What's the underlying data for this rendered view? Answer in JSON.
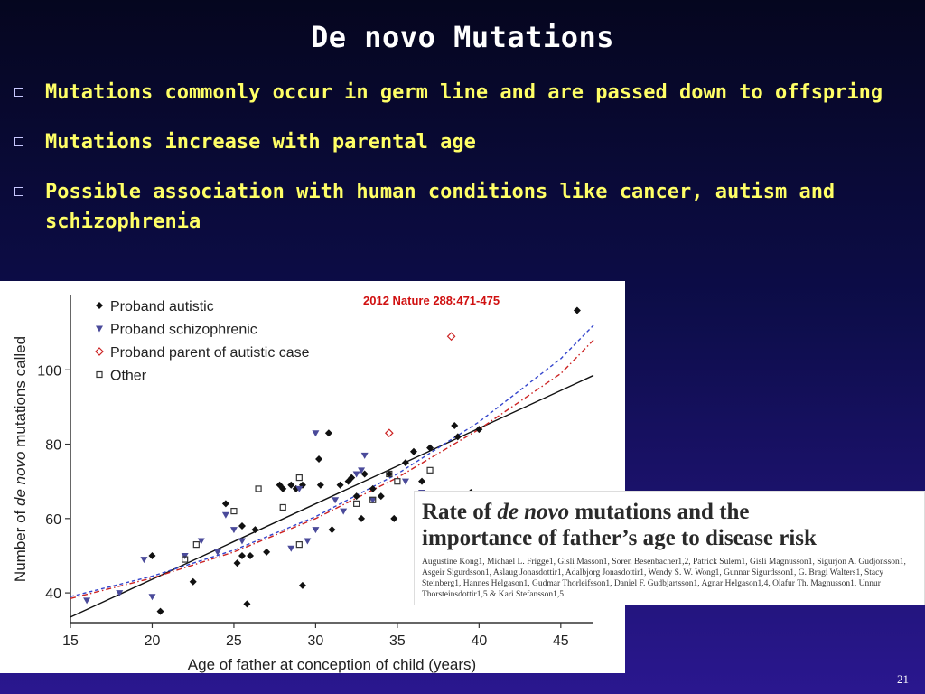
{
  "slide": {
    "title": "De novo Mutations",
    "bullets": [
      "Mutations commonly occur in germ line and are passed down to offspring",
      "Mutations increase with parental age",
      "Possible association with human conditions like cancer, autism and schizophrenia"
    ],
    "page_number": "21"
  },
  "citation": "2012 Nature 288:471-475",
  "paper": {
    "title_pre": "Rate of ",
    "title_em": "de novo",
    "title_post": " mutations and the",
    "title_line2": "importance of father’s age to disease risk",
    "authors": "Augustine Kong1, Michael L. Frigge1, Gisli Masson1, Soren Besenbacher1,2, Patrick Sulem1, Gisli Magnusson1, Sigurjon A. Gudjonsson1, Asgeir Sigurdsson1, Aslaug Jonasdottir1, Adalbjorg Jonasdottir1, Wendy S. W. Wong1, Gunnar Sigurdsson1, G. Bragi Walters1, Stacy Steinberg1, Hannes Helgason1, Gudmar Thorleifsson1, Daniel F. Gudbjartsson1, Agnar Helgason1,4, Olafur Th. Magnusson1, Unnur Thorsteinsdottir1,5 & Kari Stefansson1,5"
  },
  "chart_data": {
    "type": "scatter",
    "xlabel": "Age of father at conception of child (years)",
    "ylabel_pre": "Number of ",
    "ylabel_em": "de novo",
    "ylabel_post": "  mutations called",
    "xlim": [
      15,
      47
    ],
    "ylim": [
      32,
      120
    ],
    "xticks": [
      15,
      20,
      25,
      30,
      35,
      40,
      45
    ],
    "yticks": [
      40,
      60,
      80,
      100
    ],
    "legend_position": "top-left",
    "series": [
      {
        "name": "Proband autistic",
        "marker": "diamond",
        "color": "#111111",
        "points": [
          [
            20,
            50
          ],
          [
            20.5,
            35
          ],
          [
            22.5,
            43
          ],
          [
            24.5,
            64
          ],
          [
            25.2,
            48
          ],
          [
            25.5,
            50
          ],
          [
            25.5,
            58
          ],
          [
            25.8,
            37
          ],
          [
            26,
            50
          ],
          [
            26.3,
            57
          ],
          [
            27,
            51
          ],
          [
            27.8,
            69
          ],
          [
            28,
            68
          ],
          [
            28.5,
            69
          ],
          [
            28.8,
            68
          ],
          [
            29.2,
            42
          ],
          [
            29.2,
            69
          ],
          [
            30.2,
            76
          ],
          [
            30.3,
            69
          ],
          [
            30.8,
            83
          ],
          [
            31,
            57
          ],
          [
            31.5,
            69
          ],
          [
            32,
            70
          ],
          [
            32.2,
            71
          ],
          [
            32.5,
            66
          ],
          [
            32.8,
            60
          ],
          [
            33,
            72
          ],
          [
            33.5,
            68
          ],
          [
            34,
            66
          ],
          [
            34.5,
            72
          ],
          [
            34.8,
            60
          ],
          [
            35.5,
            75
          ],
          [
            36,
            78
          ],
          [
            36.5,
            70
          ],
          [
            37,
            79
          ],
          [
            38.5,
            85
          ],
          [
            38.7,
            82
          ],
          [
            39.5,
            67
          ],
          [
            40,
            84
          ],
          [
            46,
            116
          ]
        ]
      },
      {
        "name": "Proband schizophrenic",
        "marker": "triangle",
        "color": "#4a4a9a",
        "points": [
          [
            16,
            38
          ],
          [
            18,
            40
          ],
          [
            19.5,
            49
          ],
          [
            20,
            39
          ],
          [
            22,
            50
          ],
          [
            23,
            54
          ],
          [
            24,
            51
          ],
          [
            24.5,
            61
          ],
          [
            25,
            57
          ],
          [
            25.5,
            54
          ],
          [
            28.5,
            52
          ],
          [
            29,
            68
          ],
          [
            29.5,
            54
          ],
          [
            30,
            57
          ],
          [
            30,
            83
          ],
          [
            31.2,
            65
          ],
          [
            31.7,
            62
          ],
          [
            32.5,
            72
          ],
          [
            32.8,
            73
          ],
          [
            33,
            77
          ],
          [
            33.5,
            65
          ],
          [
            35.5,
            70
          ],
          [
            36.5,
            67
          ]
        ]
      },
      {
        "name": "Proband parent of autistic case",
        "marker": "diamond-open",
        "color": "#cc2222",
        "points": [
          [
            34.5,
            83
          ],
          [
            38.3,
            109
          ]
        ]
      },
      {
        "name": "Other",
        "marker": "square-open",
        "color": "#333333",
        "points": [
          [
            22,
            49
          ],
          [
            22.7,
            53
          ],
          [
            25,
            62
          ],
          [
            26.5,
            68
          ],
          [
            28,
            63
          ],
          [
            29,
            53
          ],
          [
            29,
            71
          ],
          [
            32.5,
            64
          ],
          [
            33.5,
            65
          ],
          [
            34.5,
            72
          ],
          [
            35,
            70
          ],
          [
            37,
            73
          ]
        ]
      }
    ],
    "fits": [
      {
        "style": "solid",
        "color": "#111111",
        "points": [
          [
            15,
            33.5
          ],
          [
            47,
            98.5
          ]
        ]
      },
      {
        "style": "dashed",
        "color": "#3344cc",
        "points": [
          [
            15,
            39
          ],
          [
            20,
            44.5
          ],
          [
            25,
            51.5
          ],
          [
            30,
            60.5
          ],
          [
            35,
            72
          ],
          [
            40,
            86
          ],
          [
            45,
            103
          ],
          [
            47,
            112
          ]
        ]
      },
      {
        "style": "dashdot",
        "color": "#cc2222",
        "points": [
          [
            15,
            38.5
          ],
          [
            20,
            44
          ],
          [
            25,
            51
          ],
          [
            30,
            60
          ],
          [
            35,
            71
          ],
          [
            40,
            84
          ],
          [
            45,
            99
          ],
          [
            47,
            108
          ]
        ]
      }
    ]
  }
}
